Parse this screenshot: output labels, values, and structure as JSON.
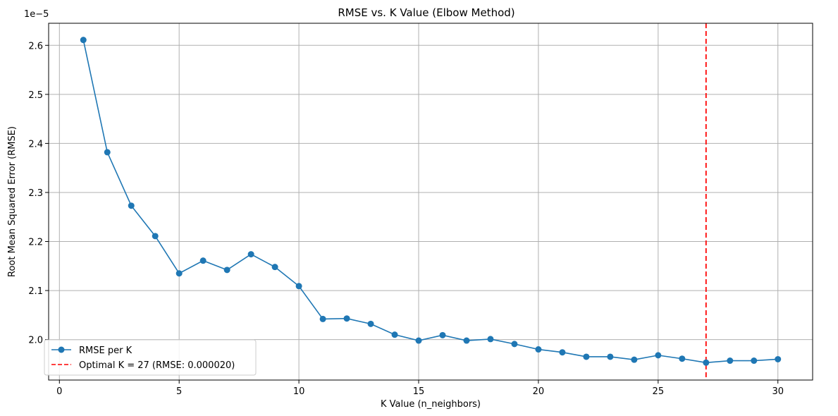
{
  "chart_data": {
    "type": "line",
    "title": "RMSE vs. K Value (Elbow Method)",
    "xlabel": "K Value (n_neighbors)",
    "ylabel": "Root Mean Squared Error (RMSE)",
    "y_offset_label": "1e−5",
    "xlim": [
      -0.45,
      31.45
    ],
    "ylim": [
      1.9175,
      2.645
    ],
    "x_ticks": [
      0,
      5,
      10,
      15,
      20,
      25,
      30
    ],
    "y_ticks": [
      2.0,
      2.1,
      2.2,
      2.3,
      2.4,
      2.5,
      2.6
    ],
    "grid": true,
    "legend_position": "lower-left",
    "series": [
      {
        "name": "RMSE per K",
        "color": "#1f77b4",
        "x": [
          1,
          2,
          3,
          4,
          5,
          6,
          7,
          8,
          9,
          10,
          11,
          12,
          13,
          14,
          15,
          16,
          17,
          18,
          19,
          20,
          21,
          22,
          23,
          24,
          25,
          26,
          27,
          28,
          29,
          30
        ],
        "values": [
          2.611,
          2.382,
          2.273,
          2.211,
          2.135,
          2.161,
          2.142,
          2.174,
          2.148,
          2.109,
          2.042,
          2.043,
          2.032,
          2.01,
          1.998,
          2.009,
          1.998,
          2.001,
          1.991,
          1.98,
          1.974,
          1.965,
          1.965,
          1.959,
          1.968,
          1.961,
          1.953,
          1.957,
          1.957,
          1.96
        ]
      }
    ],
    "reference_line": {
      "label": "Optimal K = 27 (RMSE: 0.000020)",
      "x": 27,
      "color": "#ff0000",
      "style": "dashed"
    }
  }
}
